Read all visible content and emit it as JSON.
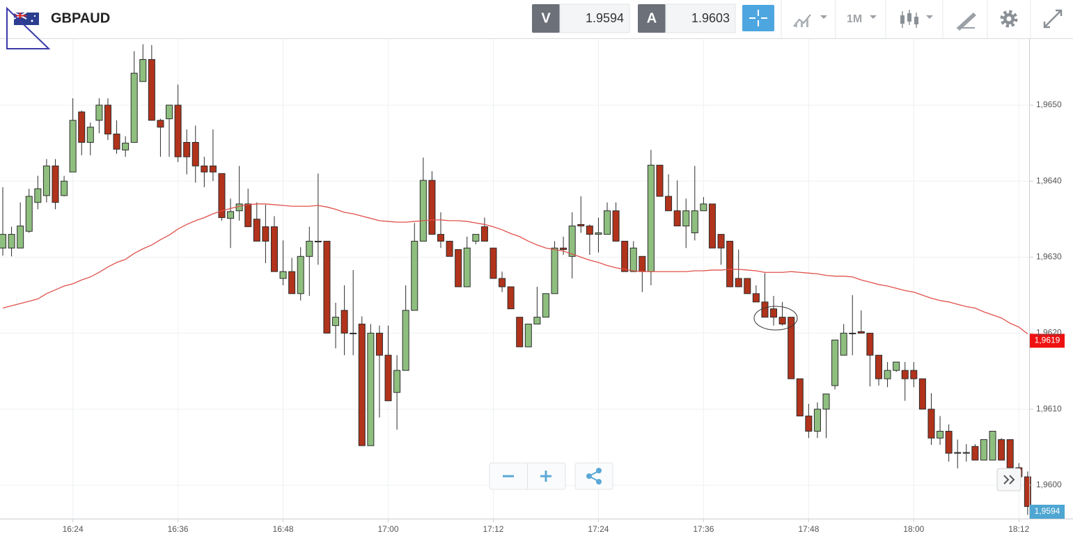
{
  "chart_data": {
    "type": "candlestick",
    "title": "GBPAUD",
    "toolbar": {
      "sell_label": "V",
      "sell_price": "1.9594",
      "buy_label": "A",
      "buy_price": "1.9603",
      "timeframe": "1M"
    },
    "categories": [
      null,
      null,
      null,
      null,
      null,
      null,
      null,
      null,
      "16:24",
      null,
      null,
      null,
      null,
      null,
      null,
      null,
      null,
      null,
      null,
      null,
      "16:36",
      null,
      null,
      null,
      null,
      null,
      null,
      null,
      null,
      null,
      null,
      null,
      "16:48",
      null,
      null,
      null,
      null,
      null,
      null,
      null,
      null,
      null,
      null,
      null,
      "17:00",
      null,
      null,
      null,
      null,
      null,
      null,
      null,
      null,
      null,
      null,
      null,
      "17:12",
      null,
      null,
      null,
      null,
      null,
      null,
      null,
      null,
      null,
      null,
      null,
      "17:24",
      null,
      null,
      null,
      null,
      null,
      null,
      null,
      null,
      null,
      null,
      null,
      "17:36",
      null,
      null,
      null,
      null,
      null,
      null,
      null,
      null,
      null,
      null,
      null,
      "17:48",
      null,
      null,
      null,
      null,
      null,
      null,
      null,
      null,
      null,
      null,
      null,
      "18:00",
      null,
      null,
      null,
      null,
      null,
      null,
      null,
      null,
      null,
      null,
      null,
      "18:12",
      null
    ],
    "open": [
      1.96312,
      1.96312,
      1.96312,
      1.96334,
      1.96372,
      1.96381,
      1.9642,
      1.96381,
      1.96412,
      1.96491,
      1.96451,
      1.9648,
      1.965,
      1.96462,
      1.96441,
      1.96451,
      1.96531,
      1.9656,
      1.9648,
      1.96482,
      1.965,
      1.96451,
      1.96451,
      1.9642,
      1.9642,
      1.9641,
      1.96351,
      1.96361,
      1.9637,
      1.9635,
      1.9634,
      1.9634,
      1.96272,
      1.96281,
      1.96252,
      1.96301,
      1.9632,
      1.96321,
      1.9621,
      1.9623,
      1.962,
      1.96212,
      1.96052,
      1.962,
      1.96171,
      1.96122,
      1.96151,
      1.9623,
      1.96321,
      1.96401,
      1.9633,
      1.96321,
      1.9631,
      1.96261,
      1.96321,
      1.9634,
      1.96312,
      1.96272,
      1.96261,
      1.96221,
      1.96182,
      1.96212,
      1.96221,
      1.96252,
      1.96312,
      1.96301,
      1.96343,
      1.96341,
      1.9633,
      1.9633,
      1.96361,
      1.96321,
      1.96281,
      1.96301,
      1.96281,
      1.96421,
      1.9638,
      1.96361,
      1.96341,
      1.96332,
      1.96361,
      1.9637,
      1.9633,
      1.96321,
      1.96272,
      1.96272,
      1.96252,
      1.96241,
      1.96232,
      1.96221,
      1.96221,
      1.9614,
      1.96091,
      1.96071,
      1.961,
      1.96131,
      1.96171,
      1.962,
      1.96202,
      1.962,
      1.96171,
      1.9614,
      1.96151,
      1.96151,
      1.96151,
      1.9614,
      1.961,
      1.96062,
      1.96071,
      1.96043,
      1.96042,
      1.96051,
      1.96033,
      1.96033,
      1.9606,
      1.9606,
      1.96023,
      1.96011
    ],
    "high": [
      1.96392,
      1.9634,
      1.96372,
      1.9639,
      1.96407,
      1.96429,
      1.96429,
      1.96407,
      1.96509,
      1.96493,
      1.96477,
      1.96509,
      1.96509,
      1.9648,
      1.96459,
      1.96571,
      1.9658,
      1.96579,
      1.96482,
      1.965,
      1.96527,
      1.96468,
      1.96473,
      1.96432,
      1.96468,
      1.9641,
      1.96377,
      1.9642,
      1.9639,
      1.96372,
      1.96369,
      1.96354,
      1.96322,
      1.96299,
      1.96313,
      1.9634,
      1.9641,
      1.96321,
      1.9624,
      1.96263,
      1.96283,
      1.96222,
      1.96212,
      1.9621,
      1.9621,
      1.96171,
      1.96263,
      1.96345,
      1.96431,
      1.96413,
      1.96359,
      1.96321,
      1.9631,
      1.96327,
      1.9633,
      1.96352,
      1.96312,
      1.96281,
      1.96261,
      1.96221,
      1.96212,
      1.96261,
      1.96252,
      1.96321,
      1.96327,
      1.96359,
      1.9638,
      1.96343,
      1.96352,
      1.96372,
      1.96372,
      1.96321,
      1.96321,
      1.96301,
      1.96441,
      1.96421,
      1.96409,
      1.96401,
      1.96377,
      1.9642,
      1.96379,
      1.9637,
      1.9633,
      1.96321,
      1.9631,
      1.96272,
      1.96263,
      1.96279,
      1.96249,
      1.96241,
      1.96221,
      1.9614,
      1.96107,
      1.96109,
      1.9612,
      1.96191,
      1.96212,
      1.9625,
      1.9623,
      1.962,
      1.96171,
      1.96162,
      1.96162,
      1.96162,
      1.96162,
      1.9614,
      1.96121,
      1.96091,
      1.9608,
      1.9606,
      1.96054,
      1.96054,
      1.9606,
      1.96071,
      1.96062,
      1.9606,
      1.96029,
      1.96018
    ],
    "low": [
      1.96302,
      1.96301,
      1.96312,
      1.96332,
      1.96363,
      1.96372,
      1.96363,
      1.9638,
      1.96412,
      1.96434,
      1.96434,
      1.96463,
      1.96454,
      1.96436,
      1.96432,
      1.96451,
      1.96531,
      1.9648,
      1.96432,
      1.96432,
      1.96425,
      1.96409,
      1.96398,
      1.96392,
      1.964,
      1.96348,
      1.96312,
      1.96348,
      1.9634,
      1.96321,
      1.96292,
      1.96281,
      1.96263,
      1.96252,
      1.96243,
      1.96249,
      1.9629,
      1.962,
      1.9618,
      1.96171,
      1.96171,
      1.96052,
      1.96052,
      1.96089,
      1.96111,
      1.96073,
      1.96151,
      1.9623,
      1.96321,
      1.9633,
      1.96312,
      1.96301,
      1.96261,
      1.96261,
      1.96317,
      1.96321,
      1.96272,
      1.96254,
      1.96232,
      1.96182,
      1.96182,
      1.96212,
      1.96221,
      1.96252,
      1.96303,
      1.96272,
      1.96332,
      1.96303,
      1.96306,
      1.9633,
      1.96321,
      1.96281,
      1.96281,
      1.96254,
      1.96263,
      1.9638,
      1.96361,
      1.96341,
      1.96312,
      1.96322,
      1.96361,
      1.96312,
      1.9629,
      1.96261,
      1.96261,
      1.96252,
      1.96241,
      1.96221,
      1.9621,
      1.9621,
      1.9614,
      1.96091,
      1.96062,
      1.96062,
      1.96062,
      1.96126,
      1.96171,
      1.96171,
      1.962,
      1.9613,
      1.96131,
      1.96129,
      1.96149,
      1.96111,
      1.96129,
      1.961,
      1.96053,
      1.96053,
      1.96031,
      1.96022,
      1.96031,
      1.96033,
      1.96033,
      1.96033,
      1.96033,
      1.96023,
      1.96007,
      1.95961
    ],
    "close": [
      1.9633,
      1.9633,
      1.96341,
      1.9638,
      1.9639,
      1.9642,
      1.96372,
      1.964,
      1.9648,
      1.96451,
      1.96471,
      1.965,
      1.96462,
      1.96442,
      1.9645,
      1.96542,
      1.9656,
      1.9648,
      1.96471,
      1.965,
      1.96432,
      1.96432,
      1.9642,
      1.96412,
      1.96412,
      1.96352,
      1.9636,
      1.9637,
      1.9634,
      1.96321,
      1.96321,
      1.96281,
      1.96281,
      1.96252,
      1.96301,
      1.96321,
      1.96321,
      1.962,
      1.96221,
      1.962,
      1.962,
      1.96052,
      1.962,
      1.96171,
      1.96111,
      1.96151,
      1.9623,
      1.96321,
      1.96401,
      1.9633,
      1.96321,
      1.96301,
      1.96261,
      1.96312,
      1.9633,
      1.96321,
      1.96272,
      1.96261,
      1.96232,
      1.96182,
      1.96212,
      1.96221,
      1.96252,
      1.96312,
      1.9631,
      1.96341,
      1.96341,
      1.9633,
      1.96332,
      1.96361,
      1.96321,
      1.96281,
      1.96312,
      1.96281,
      1.96421,
      1.9638,
      1.96361,
      1.96341,
      1.96361,
      1.96361,
      1.9637,
      1.96312,
      1.96312,
      1.96261,
      1.96261,
      1.96252,
      1.96241,
      1.96221,
      1.96221,
      1.96212,
      1.9614,
      1.96091,
      1.96071,
      1.961,
      1.9612,
      1.96191,
      1.962,
      1.962,
      1.962,
      1.96171,
      1.9614,
      1.96151,
      1.96162,
      1.9614,
      1.9614,
      1.961,
      1.96062,
      1.96071,
      1.96042,
      1.96042,
      1.96043,
      1.96033,
      1.9606,
      1.96071,
      1.96033,
      1.96023,
      1.96011,
      1.95972
    ],
    "up_color": "#8fbf7f",
    "down_color": "#b1331b",
    "moving_average": {
      "color": "#e0504a",
      "values": [
        1.96233,
        1.96236,
        1.96239,
        1.96242,
        1.96245,
        1.96252,
        1.96257,
        1.96262,
        1.96265,
        1.9627,
        1.96274,
        1.9628,
        1.96287,
        1.96293,
        1.96297,
        1.96305,
        1.96311,
        1.96316,
        1.96323,
        1.96329,
        1.96337,
        1.96343,
        1.96348,
        1.96352,
        1.96357,
        1.96361,
        1.96364,
        1.96367,
        1.96369,
        1.9637,
        1.9637,
        1.96369,
        1.96368,
        1.96367,
        1.96367,
        1.96367,
        1.96368,
        1.96366,
        1.96363,
        1.96359,
        1.96357,
        1.96354,
        1.96351,
        1.96348,
        1.96347,
        1.96346,
        1.96346,
        1.96347,
        1.96348,
        1.96349,
        1.96349,
        1.96348,
        1.96348,
        1.96347,
        1.96345,
        1.96343,
        1.9634,
        1.96336,
        1.96331,
        1.96327,
        1.96321,
        1.96316,
        1.96312,
        1.9631,
        1.96308,
        1.96304,
        1.963,
        1.96296,
        1.96293,
        1.96289,
        1.96286,
        1.96284,
        1.96282,
        1.96281,
        1.96281,
        1.96281,
        1.96281,
        1.96281,
        1.96281,
        1.96282,
        1.96282,
        1.96283,
        1.96283,
        1.96284,
        1.96284,
        1.96283,
        1.96282,
        1.9628,
        1.9628,
        1.9628,
        1.96281,
        1.9628,
        1.96279,
        1.96278,
        1.96276,
        1.96275,
        1.96275,
        1.96274,
        1.9627,
        1.96267,
        1.96264,
        1.96262,
        1.96259,
        1.96256,
        1.96254,
        1.9625,
        1.96246,
        1.96243,
        1.96241,
        1.96238,
        1.96235,
        1.96233,
        1.96228,
        1.96224,
        1.9622,
        1.96213,
        1.96208,
        1.96199
      ]
    },
    "ylim": [
      1.95956,
      1.96587
    ],
    "yticks": [
      {
        "value": 1.96,
        "label": "1,9600"
      },
      {
        "value": 1.961,
        "label": "1,9610"
      },
      {
        "value": 1.962,
        "label": "1,9620"
      },
      {
        "value": 1.963,
        "label": "1,9630"
      },
      {
        "value": 1.964,
        "label": "1,9640"
      },
      {
        "value": 1.965,
        "label": "1,9650"
      }
    ],
    "grid": true,
    "price_tags": [
      {
        "value": 1.9619,
        "label": "1,9619",
        "color": "#ee1111"
      },
      {
        "value": 1.9594,
        "label": "1,9594",
        "color": "#4ea6d2"
      }
    ]
  }
}
